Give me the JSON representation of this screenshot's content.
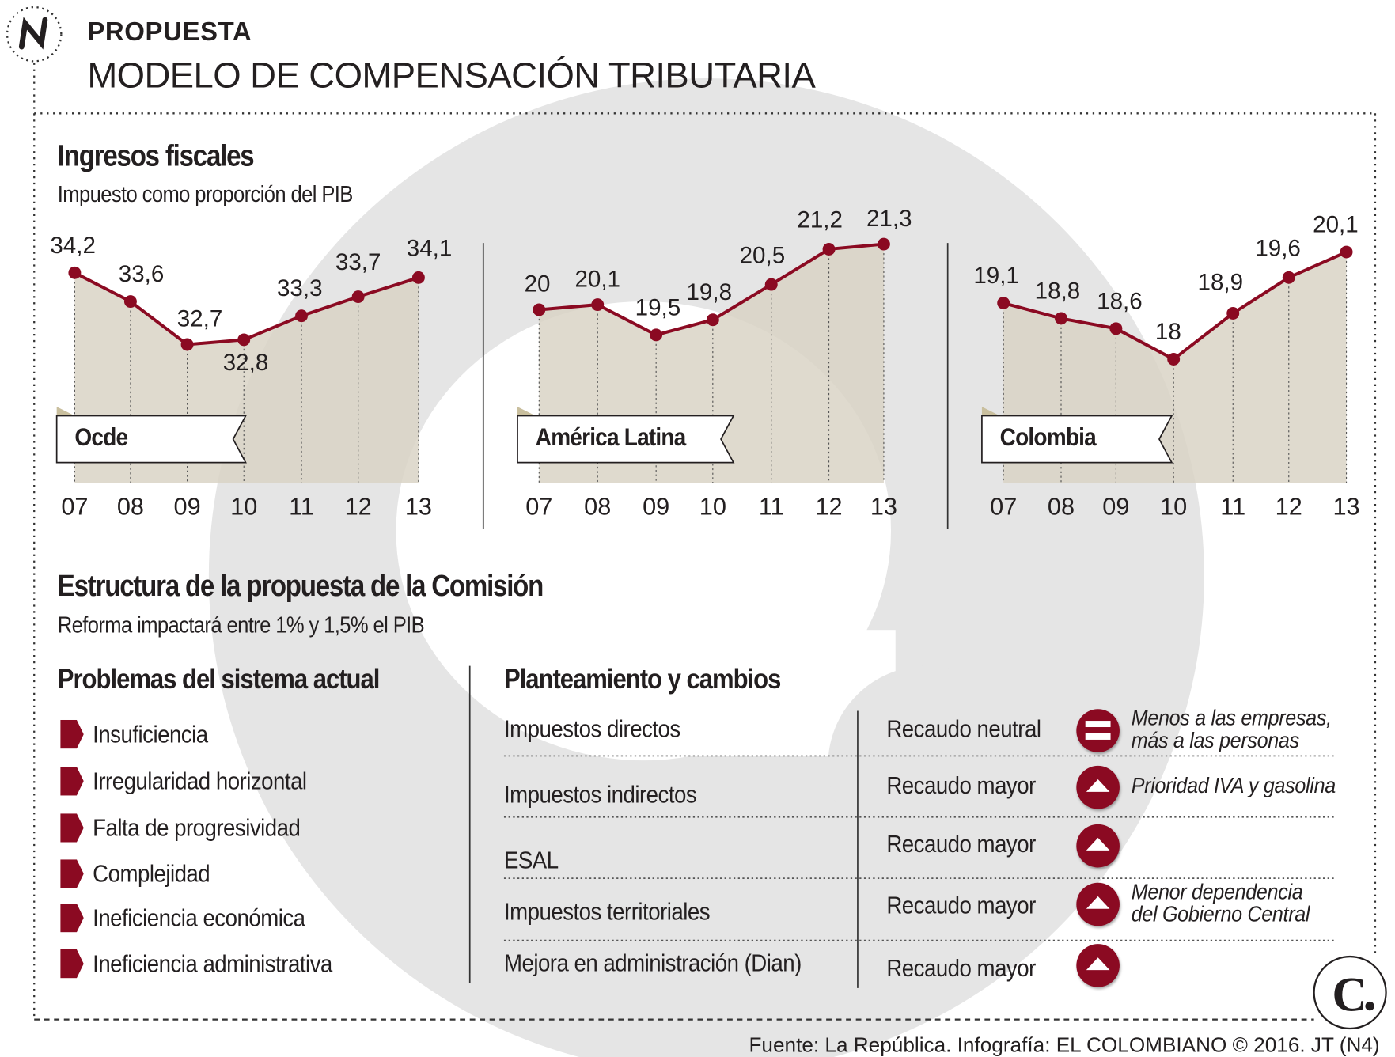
{
  "header": {
    "kicker": "PROPUESTA",
    "title": "MODELO DE COMPENSACIÓN TRIBUTARIA",
    "logo_icon": "n-logo-icon"
  },
  "colors": {
    "accent": "#8b0a22",
    "area": "#d9d4c5",
    "watermark": "#e5e5e5",
    "text": "#231f20"
  },
  "section1": {
    "title": "Ingresos fiscales",
    "subtitle": "Impuesto como proporción del PIB"
  },
  "chart_data": [
    {
      "type": "area",
      "name": "Ocde",
      "categories": [
        "07",
        "08",
        "09",
        "10",
        "11",
        "12",
        "13"
      ],
      "values": [
        34.2,
        33.6,
        32.7,
        32.8,
        33.3,
        33.7,
        34.1
      ],
      "labels": [
        "34,2",
        "33,6",
        "32,7",
        "32,8",
        "33,3",
        "33,7",
        "34,1"
      ],
      "ylim": [
        29.8,
        35.2
      ],
      "grid": "vertical-dotted"
    },
    {
      "type": "area",
      "name": "América Latina",
      "categories": [
        "07",
        "08",
        "09",
        "10",
        "11",
        "12",
        "13"
      ],
      "values": [
        20,
        20.1,
        19.5,
        19.8,
        20.5,
        21.2,
        21.3
      ],
      "labels": [
        "20",
        "20,1",
        "19,5",
        "19,8",
        "20,5",
        "21,2",
        "21,3"
      ],
      "ylim": [
        16.56,
        21.68
      ],
      "grid": "vertical-dotted"
    },
    {
      "type": "area",
      "name": "Colombia",
      "categories": [
        "07",
        "08",
        "09",
        "10",
        "11",
        "12",
        "13"
      ],
      "values": [
        19.1,
        18.8,
        18.6,
        18,
        18.9,
        19.6,
        20.1
      ],
      "labels": [
        "19,1",
        "18,8",
        "18,6",
        "18",
        "18,9",
        "19,6",
        "20,1"
      ],
      "ylim": [
        15.57,
        20.63
      ],
      "grid": "vertical-dotted"
    }
  ],
  "section2": {
    "title": "Estructura de la propuesta de la Comisión",
    "subtitle": "Reforma impactará entre 1% y 1,5% el PIB"
  },
  "problems": {
    "title": "Problemas del sistema actual",
    "items": [
      "Insuficiencia",
      "Irregularidad horizontal",
      "Falta de progresividad",
      "Complejidad",
      "Ineficiencia económica",
      "Ineficiencia administrativa"
    ]
  },
  "changes": {
    "title": "Planteamiento y cambios",
    "rows": [
      {
        "item": "Impuestos directos",
        "result": "Recaudo neutral",
        "icon": "equals-icon",
        "note1": "Menos a las empresas,",
        "note2": "más a las personas"
      },
      {
        "item": "Impuestos indirectos",
        "result": "Recaudo mayor",
        "icon": "arrow-up-icon",
        "note1": "Prioridad IVA y gasolina",
        "note2": ""
      },
      {
        "item": "ESAL",
        "result": "Recaudo mayor",
        "icon": "arrow-up-icon",
        "note1": "",
        "note2": ""
      },
      {
        "item": "Impuestos territoriales",
        "result": "Recaudo mayor",
        "icon": "arrow-up-icon",
        "note1": "Menor dependencia",
        "note2": "del Gobierno Central"
      },
      {
        "item": "Mejora en administración (Dian)",
        "result": "Recaudo mayor",
        "icon": "arrow-up-icon",
        "note1": "",
        "note2": ""
      }
    ]
  },
  "footer": {
    "source": "Fuente: La República. Infografía: EL COLOMBIANO © 2016. JT (N4)",
    "brand_logo": "C."
  }
}
